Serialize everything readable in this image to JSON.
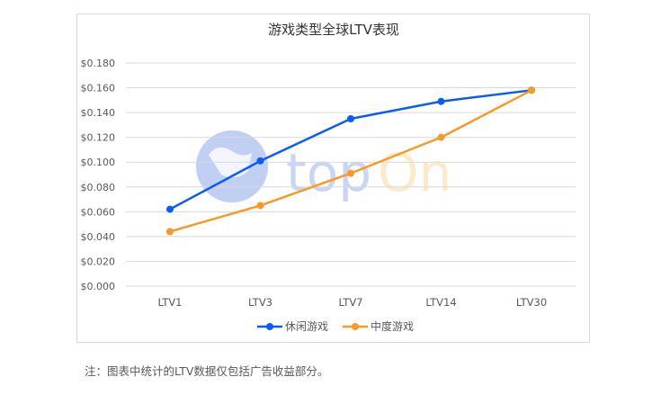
{
  "chart_data": {
    "type": "line",
    "title": "游戏类型全球LTV表现",
    "categories": [
      "LTV1",
      "LTV3",
      "LTV7",
      "LTV14",
      "LTV30"
    ],
    "series": [
      {
        "name": "休闲游戏",
        "color": "#0b5cf5",
        "values": [
          0.062,
          0.101,
          0.135,
          0.149,
          0.158
        ]
      },
      {
        "name": "中度游戏",
        "color": "#f79a26",
        "values": [
          0.044,
          0.065,
          0.091,
          0.12,
          0.158
        ]
      }
    ],
    "ylim": [
      0,
      0.18
    ],
    "yticks": [
      0,
      0.02,
      0.04,
      0.06,
      0.08,
      0.1,
      0.12,
      0.14,
      0.16,
      0.18
    ],
    "ytick_labels": [
      "$0.000",
      "$0.020",
      "$0.040",
      "$0.060",
      "$0.080",
      "$0.100",
      "$0.120",
      "$0.140",
      "$0.160",
      "$0.180"
    ],
    "grid": true,
    "legend_position": "bottom-center"
  },
  "watermark": "topOn",
  "note": "注：图表中统计的LTV数据仅包括广告收益部分。"
}
